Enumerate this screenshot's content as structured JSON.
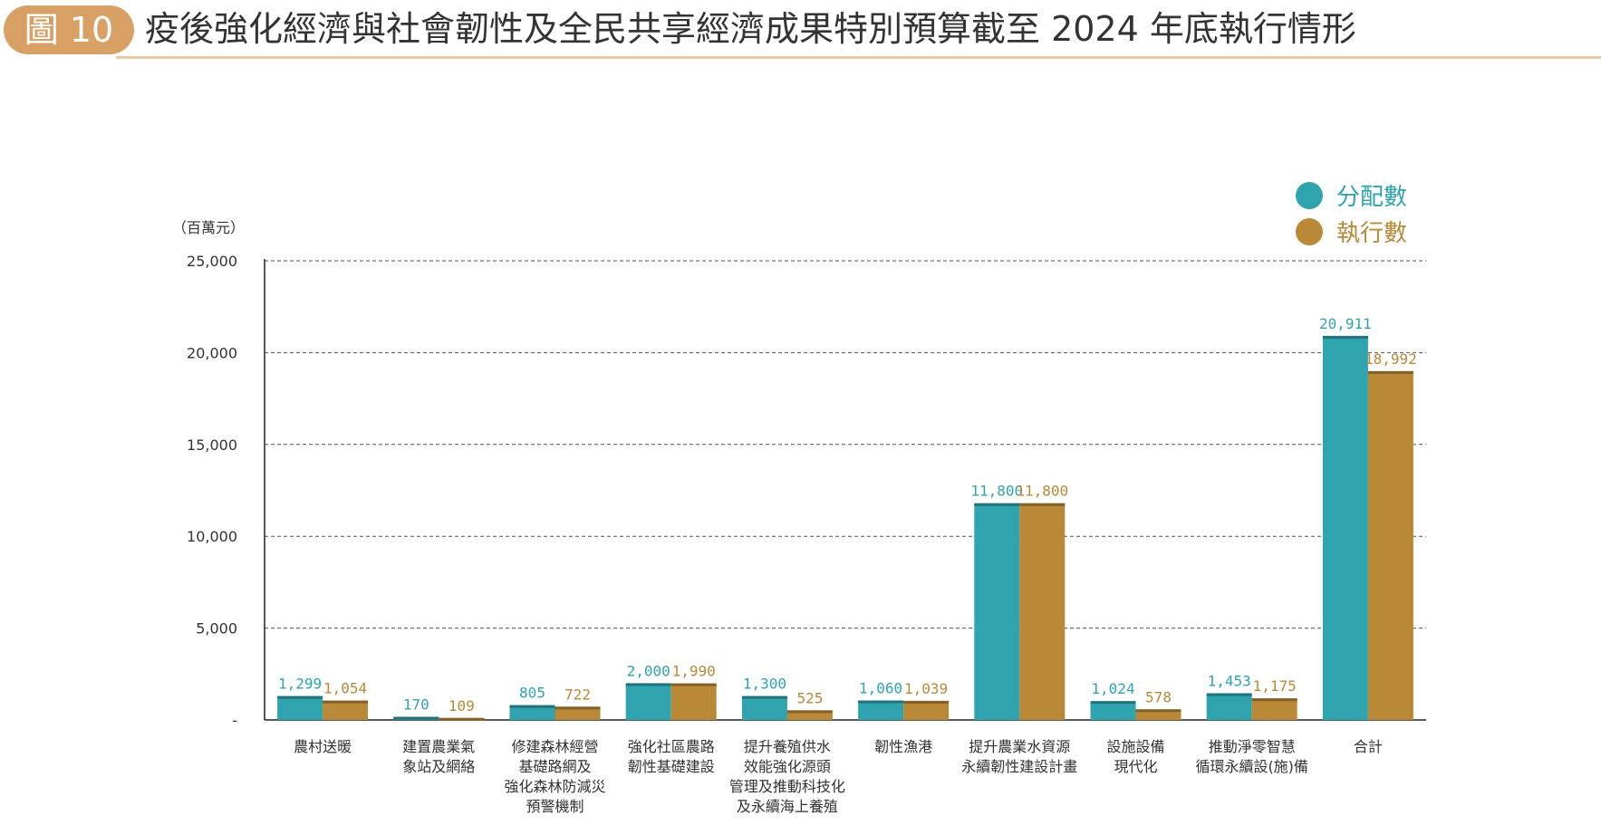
{
  "header": {
    "badge": "圖 10",
    "title": "疫後強化經濟與社會韌性及全民共享經濟成果特別預算截至 2024 年底執行情形"
  },
  "chart_data": {
    "type": "bar",
    "ylabel": "（百萬元）",
    "ylim": [
      0,
      25000
    ],
    "yticks": [
      {
        "value": 0,
        "label": "-"
      },
      {
        "value": 5000,
        "label": "5,000"
      },
      {
        "value": 10000,
        "label": "10,000"
      },
      {
        "value": 15000,
        "label": "15,000"
      },
      {
        "value": 20000,
        "label": "20,000"
      },
      {
        "value": 25000,
        "label": "25,000"
      }
    ],
    "grid": true,
    "legend_position": "top-right",
    "categories": [
      [
        "農村送暖"
      ],
      [
        "建置農業氣",
        "象站及網絡"
      ],
      [
        "修建森林經營",
        "基礎路網及",
        "強化森林防減災",
        "預警機制"
      ],
      [
        "強化社區農路",
        "韌性基礎建設"
      ],
      [
        "提升養殖供水",
        "效能強化源頭",
        "管理及推動科技化",
        "及永續海上養殖"
      ],
      [
        "韌性漁港"
      ],
      [
        "提升農業水資源",
        "永續韌性建設計畫"
      ],
      [
        "設施設備",
        "現代化"
      ],
      [
        "推動淨零智慧",
        "循環永續設(施)備"
      ],
      [
        "合計"
      ]
    ],
    "series": [
      {
        "name": "分配數",
        "color": "#2fa3ae",
        "values": [
          1299,
          170,
          805,
          2000,
          1300,
          1060,
          11800,
          1024,
          1453,
          20911
        ],
        "labels": [
          "1,299",
          "170",
          "805",
          "2,000",
          "1,300",
          "1,060",
          "11,800",
          "1,024",
          "1,453",
          "20,911"
        ]
      },
      {
        "name": "執行數",
        "color": "#b98938",
        "values": [
          1054,
          109,
          722,
          1990,
          525,
          1039,
          11800,
          578,
          1175,
          18992
        ],
        "labels": [
          "1,054",
          "109",
          "722",
          "1,990",
          "525",
          "1,039",
          "11,800",
          "578",
          "1,175",
          "18,992"
        ]
      }
    ]
  }
}
